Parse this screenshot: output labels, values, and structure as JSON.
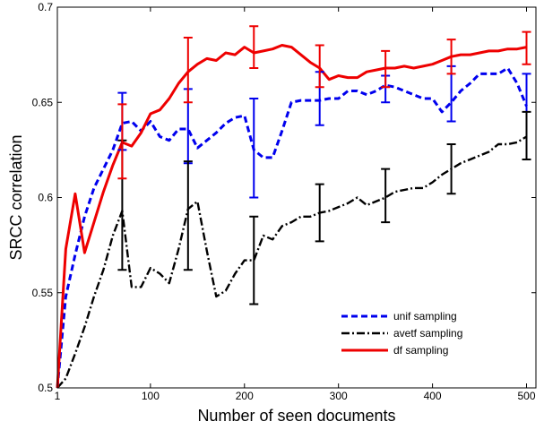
{
  "chart_data": {
    "type": "line",
    "title": "",
    "xlabel": "Number of seen documents",
    "ylabel": "SRCC correlation",
    "xlim": [
      1,
      510
    ],
    "ylim": [
      0.5,
      0.7
    ],
    "x_ticks": [
      {
        "value": 1,
        "label": "1"
      },
      {
        "value": 100,
        "label": "100"
      },
      {
        "value": 200,
        "label": "200"
      },
      {
        "value": 300,
        "label": "300"
      },
      {
        "value": 400,
        "label": "400"
      },
      {
        "value": 500,
        "label": "500"
      }
    ],
    "y_ticks": [
      {
        "value": 0.5,
        "label": "0.5"
      },
      {
        "value": 0.55,
        "label": "0.55"
      },
      {
        "value": 0.6,
        "label": "0.6"
      },
      {
        "value": 0.65,
        "label": "0.65"
      },
      {
        "value": 0.7,
        "label": "0.7"
      }
    ],
    "grid": false,
    "legend_position": "bottom-right",
    "series": [
      {
        "name": "unif sampling",
        "color": "#0000ee",
        "dash": "dashed",
        "x": [
          1,
          10,
          20,
          30,
          40,
          50,
          60,
          70,
          80,
          90,
          100,
          110,
          120,
          130,
          140,
          150,
          160,
          170,
          180,
          190,
          200,
          210,
          220,
          230,
          240,
          250,
          260,
          270,
          280,
          290,
          300,
          310,
          320,
          330,
          340,
          350,
          360,
          370,
          380,
          390,
          400,
          410,
          420,
          430,
          440,
          450,
          460,
          470,
          480,
          490,
          500
        ],
        "y": [
          0.5,
          0.548,
          0.57,
          0.59,
          0.605,
          0.615,
          0.625,
          0.639,
          0.64,
          0.635,
          0.64,
          0.632,
          0.63,
          0.636,
          0.636,
          0.626,
          0.63,
          0.634,
          0.639,
          0.642,
          0.643,
          0.625,
          0.621,
          0.621,
          0.635,
          0.65,
          0.651,
          0.651,
          0.651,
          0.652,
          0.652,
          0.656,
          0.656,
          0.654,
          0.656,
          0.659,
          0.658,
          0.656,
          0.654,
          0.652,
          0.652,
          0.645,
          0.65,
          0.656,
          0.66,
          0.665,
          0.665,
          0.665,
          0.668,
          0.66,
          0.648
        ]
      },
      {
        "name": "avetf sampling",
        "color": "#000000",
        "dash": "dashdot",
        "x": [
          1,
          10,
          20,
          30,
          40,
          50,
          60,
          70,
          80,
          90,
          100,
          110,
          120,
          130,
          140,
          150,
          160,
          170,
          180,
          190,
          200,
          210,
          220,
          230,
          240,
          250,
          260,
          270,
          280,
          290,
          300,
          310,
          320,
          330,
          340,
          350,
          360,
          370,
          380,
          390,
          400,
          410,
          420,
          430,
          440,
          450,
          460,
          470,
          480,
          490,
          500
        ],
        "y": [
          0.5,
          0.505,
          0.518,
          0.532,
          0.548,
          0.562,
          0.58,
          0.593,
          0.553,
          0.553,
          0.563,
          0.56,
          0.555,
          0.573,
          0.594,
          0.598,
          0.572,
          0.548,
          0.551,
          0.56,
          0.567,
          0.567,
          0.58,
          0.578,
          0.585,
          0.587,
          0.59,
          0.59,
          0.592,
          0.593,
          0.595,
          0.597,
          0.6,
          0.596,
          0.598,
          0.6,
          0.603,
          0.604,
          0.605,
          0.605,
          0.608,
          0.612,
          0.615,
          0.618,
          0.62,
          0.622,
          0.624,
          0.628,
          0.628,
          0.629,
          0.632
        ]
      },
      {
        "name": "df sampling",
        "color": "#ee0000",
        "dash": "solid",
        "x": [
          1,
          10,
          20,
          30,
          40,
          50,
          60,
          70,
          80,
          90,
          100,
          110,
          120,
          130,
          140,
          150,
          160,
          170,
          180,
          190,
          200,
          210,
          220,
          230,
          240,
          250,
          260,
          270,
          280,
          290,
          300,
          310,
          320,
          330,
          340,
          350,
          360,
          370,
          380,
          390,
          400,
          410,
          420,
          430,
          440,
          450,
          460,
          470,
          480,
          490,
          500
        ],
        "y": [
          0.5,
          0.573,
          0.602,
          0.571,
          0.587,
          0.603,
          0.617,
          0.629,
          0.627,
          0.634,
          0.644,
          0.646,
          0.652,
          0.66,
          0.666,
          0.67,
          0.673,
          0.672,
          0.676,
          0.675,
          0.679,
          0.676,
          0.677,
          0.678,
          0.68,
          0.679,
          0.675,
          0.671,
          0.668,
          0.662,
          0.664,
          0.663,
          0.663,
          0.666,
          0.667,
          0.668,
          0.668,
          0.669,
          0.668,
          0.669,
          0.67,
          0.672,
          0.674,
          0.675,
          0.675,
          0.676,
          0.677,
          0.677,
          0.678,
          0.678,
          0.679
        ]
      }
    ],
    "error_bars": [
      {
        "series": "unif sampling",
        "x": 70,
        "low": 0.625,
        "high": 0.655
      },
      {
        "series": "unif sampling",
        "x": 140,
        "low": 0.618,
        "high": 0.657
      },
      {
        "series": "unif sampling",
        "x": 210,
        "low": 0.6,
        "high": 0.652
      },
      {
        "series": "unif sampling",
        "x": 280,
        "low": 0.638,
        "high": 0.666
      },
      {
        "series": "unif sampling",
        "x": 350,
        "low": 0.65,
        "high": 0.664
      },
      {
        "series": "unif sampling",
        "x": 420,
        "low": 0.64,
        "high": 0.669
      },
      {
        "series": "unif sampling",
        "x": 500,
        "low": 0.62,
        "high": 0.665
      },
      {
        "series": "avetf sampling",
        "x": 70,
        "low": 0.562,
        "high": 0.63
      },
      {
        "series": "avetf sampling",
        "x": 140,
        "low": 0.562,
        "high": 0.619
      },
      {
        "series": "avetf sampling",
        "x": 210,
        "low": 0.544,
        "high": 0.59
      },
      {
        "series": "avetf sampling",
        "x": 280,
        "low": 0.577,
        "high": 0.607
      },
      {
        "series": "avetf sampling",
        "x": 350,
        "low": 0.587,
        "high": 0.615
      },
      {
        "series": "avetf sampling",
        "x": 420,
        "low": 0.602,
        "high": 0.628
      },
      {
        "series": "avetf sampling",
        "x": 500,
        "low": 0.62,
        "high": 0.645
      },
      {
        "series": "df sampling",
        "x": 70,
        "low": 0.61,
        "high": 0.649
      },
      {
        "series": "df sampling",
        "x": 140,
        "low": 0.65,
        "high": 0.684
      },
      {
        "series": "df sampling",
        "x": 210,
        "low": 0.668,
        "high": 0.69
      },
      {
        "series": "df sampling",
        "x": 280,
        "low": 0.658,
        "high": 0.68
      },
      {
        "series": "df sampling",
        "x": 350,
        "low": 0.658,
        "high": 0.677
      },
      {
        "series": "df sampling",
        "x": 420,
        "low": 0.665,
        "high": 0.683
      },
      {
        "series": "df sampling",
        "x": 500,
        "low": 0.67,
        "high": 0.687
      }
    ]
  }
}
